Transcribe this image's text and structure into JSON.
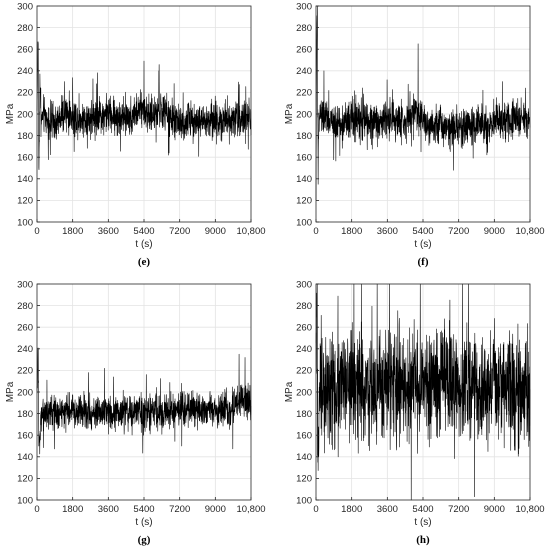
{
  "y_axis_label": "MPa",
  "x_axis_label": "t (s)",
  "chart_data": [
    {
      "panel": "(e)",
      "type": "line",
      "xlabel": "t (s)",
      "ylabel": "MPa",
      "xlim": [
        0,
        10800
      ],
      "ylim": [
        100,
        300
      ],
      "xticks": [
        0,
        1800,
        3600,
        5400,
        7200,
        9000,
        10800
      ],
      "xtick_labels": [
        "0",
        "1800",
        "3600",
        "5400",
        "7200",
        "9000",
        "10,800"
      ],
      "yticks": [
        100,
        120,
        140,
        160,
        180,
        200,
        220,
        240,
        260,
        280,
        300
      ],
      "grid": true,
      "series": [
        {
          "x": [
            0,
            50,
            100,
            150,
            200,
            300,
            500,
            900,
            1500,
            2200,
            3000,
            3600,
            4300,
            4900,
            5400,
            5800,
            6200,
            6600,
            7200,
            7800,
            8500,
            9000,
            9500,
            10000,
            10400,
            10800
          ],
          "y": [
            200,
            265,
            150,
            235,
            190,
            200,
            195,
            190,
            200,
            195,
            198,
            200,
            195,
            200,
            205,
            198,
            205,
            198,
            190,
            195,
            192,
            195,
            195,
            198,
            195,
            195
          ]
        }
      ],
      "mean_level": 195,
      "noise_amplitude": 12,
      "spikes": [
        [
          60,
          265
        ],
        [
          90,
          150
        ],
        [
          5400,
          249
        ],
        [
          6150,
          240
        ],
        [
          3000,
          228
        ],
        [
          1400,
          230
        ],
        [
          10700,
          215
        ]
      ]
    },
    {
      "panel": "(f)",
      "type": "line",
      "xlabel": "t (s)",
      "ylabel": "MPa",
      "xlim": [
        0,
        10800
      ],
      "ylim": [
        100,
        300
      ],
      "xticks": [
        0,
        1800,
        3600,
        5400,
        7200,
        9000,
        10800
      ],
      "xtick_labels": [
        "0",
        "1800",
        "3600",
        "5400",
        "7200",
        "9000",
        "10,800"
      ],
      "yticks": [
        100,
        120,
        140,
        160,
        180,
        200,
        220,
        240,
        260,
        280,
        300
      ],
      "grid": true,
      "series": [
        {
          "x": [
            0,
            50,
            100,
            200,
            500,
            1000,
            1800,
            2600,
            3600,
            4400,
            5000,
            5200,
            5600,
            6200,
            7200,
            8000,
            9000,
            9800,
            10800
          ],
          "y": [
            130,
            300,
            170,
            200,
            195,
            190,
            195,
            192,
            195,
            193,
            205,
            200,
            192,
            190,
            188,
            190,
            192,
            195,
            195
          ]
        }
      ],
      "mean_level": 193,
      "noise_amplitude": 12,
      "spikes": [
        [
          70,
          300
        ],
        [
          110,
          135
        ],
        [
          5150,
          265
        ],
        [
          5300,
          165
        ],
        [
          400,
          240
        ],
        [
          9400,
          230
        ]
      ]
    },
    {
      "panel": "(g)",
      "type": "line",
      "xlabel": "t (s)",
      "ylabel": "MPa",
      "xlim": [
        0,
        10800
      ],
      "ylim": [
        100,
        300
      ],
      "xticks": [
        0,
        1800,
        3600,
        5400,
        7200,
        9000,
        10800
      ],
      "xtick_labels": [
        "0",
        "1800",
        "3600",
        "5400",
        "7200",
        "9000",
        "10,800"
      ],
      "yticks": [
        100,
        120,
        140,
        160,
        180,
        200,
        220,
        240,
        260,
        280,
        300
      ],
      "grid": true,
      "series": [
        {
          "x": [
            0,
            50,
            100,
            200,
            600,
            1200,
            1800,
            2600,
            3600,
            4400,
            5400,
            6200,
            7200,
            8000,
            9000,
            9800,
            10300,
            10800
          ],
          "y": [
            195,
            240,
            150,
            180,
            182,
            180,
            183,
            180,
            182,
            180,
            182,
            180,
            183,
            185,
            182,
            183,
            195,
            185
          ]
        }
      ],
      "mean_level": 182,
      "noise_amplitude": 11,
      "spikes": [
        [
          60,
          240
        ],
        [
          90,
          150
        ],
        [
          10200,
          235
        ],
        [
          10500,
          232
        ],
        [
          3400,
          222
        ],
        [
          2600,
          218
        ]
      ]
    },
    {
      "panel": "(h)",
      "type": "line",
      "xlabel": "t (s)",
      "ylabel": "MPa",
      "xlim": [
        0,
        10800
      ],
      "ylim": [
        100,
        300
      ],
      "xticks": [
        0,
        1800,
        3600,
        5400,
        7200,
        9000,
        10800
      ],
      "xtick_labels": [
        "0",
        "1800",
        "3600",
        "5400",
        "7200",
        "9000",
        "10,800"
      ],
      "yticks": [
        100,
        120,
        140,
        160,
        180,
        200,
        220,
        240,
        260,
        280,
        300
      ],
      "grid": true,
      "series": [
        {
          "x": [
            0,
            50,
            100,
            200,
            800,
            1800,
            2800,
            3600,
            4600,
            5400,
            6400,
            7200,
            8200,
            9000,
            9800,
            10800
          ],
          "y": [
            200,
            300,
            130,
            205,
            200,
            205,
            200,
            210,
            200,
            205,
            210,
            205,
            200,
            210,
            200,
            200
          ]
        }
      ],
      "mean_level": 205,
      "noise_amplitude": 35,
      "spikes": [
        [
          60,
          300
        ],
        [
          90,
          135
        ],
        [
          10780,
          155
        ],
        [
          2300,
          300
        ],
        [
          3700,
          300
        ],
        [
          7400,
          300
        ],
        [
          7700,
          300
        ],
        [
          4700,
          152
        ]
      ]
    }
  ],
  "captions": [
    "(e)",
    "(f)",
    "(g)",
    "(h)"
  ]
}
